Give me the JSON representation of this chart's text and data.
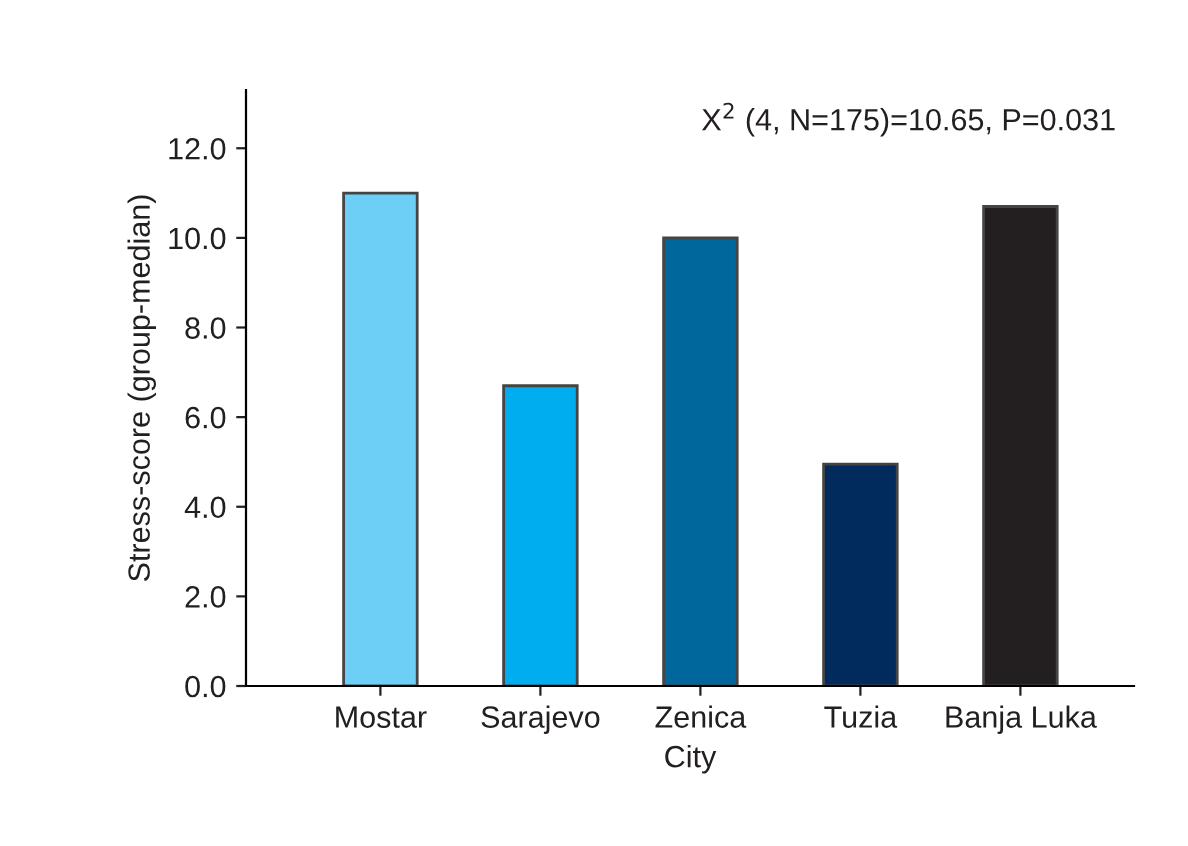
{
  "chart_data": {
    "type": "bar",
    "xlabel": "City",
    "ylabel": "Stress-score (group-median)",
    "categories": [
      "Mostar",
      "Sarajevo",
      "Zenica",
      "Tuzia",
      "Banja Luka"
    ],
    "values": [
      11.0,
      6.7,
      10.0,
      4.95,
      10.7
    ],
    "colors": [
      "#6dcff6",
      "#00aeef",
      "#00679c",
      "#002b5c",
      "#231f20"
    ],
    "ylim": [
      0,
      13.3
    ],
    "yticks": [
      {
        "value": 0,
        "label": "0.0"
      },
      {
        "value": 2,
        "label": "2.0"
      },
      {
        "value": 4,
        "label": "4.0"
      },
      {
        "value": 6,
        "label": "6.0"
      },
      {
        "value": 8,
        "label": "8.0"
      },
      {
        "value": 10,
        "label": "10.0"
      },
      {
        "value": 12,
        "label": "12.0"
      }
    ],
    "annotations": [
      "X$^{2}$ (4, N=175)=10.65, P=0.031"
    ],
    "grid": false,
    "legend": false
  }
}
